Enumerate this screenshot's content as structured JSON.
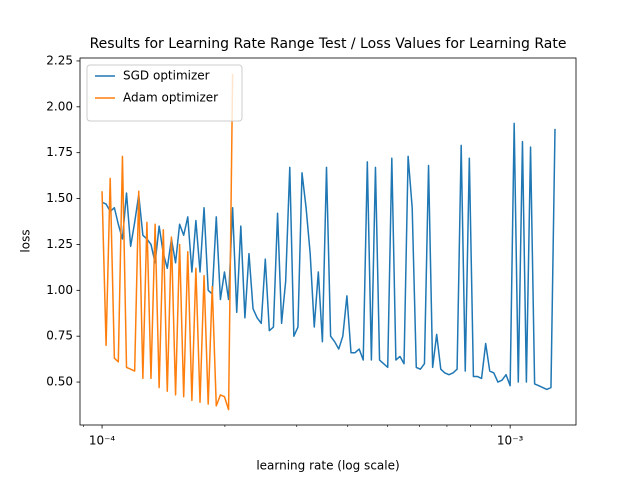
{
  "chart_data": {
    "type": "line",
    "title": "Results for Learning Rate Range Test / Loss Values for Learning Rate",
    "x_label": "learning rate (log scale)",
    "y_label": "loss",
    "xscale": "log",
    "legend": "upper left",
    "xlim": [
      8.83e-05,
      0.00145
    ],
    "xticks": [
      {
        "value": 0.0001,
        "label": "10⁻⁴"
      },
      {
        "value": 0.001,
        "label": "10⁻³"
      }
    ],
    "xminorticks": [
      9e-05,
      0.0002,
      0.0003,
      0.0004,
      0.0005,
      0.0006,
      0.0007,
      0.0008,
      0.0009
    ],
    "ylim": [
      0.266,
      2.266
    ],
    "yticks": [
      {
        "value": 0.5,
        "label": "0.50"
      },
      {
        "value": 0.75,
        "label": "0.75"
      },
      {
        "value": 1,
        "label": "1.00"
      },
      {
        "value": 1.25,
        "label": "1.25"
      },
      {
        "value": 1.5,
        "label": "1.50"
      },
      {
        "value": 1.75,
        "label": "1.75"
      },
      {
        "value": 2,
        "label": "2.00"
      },
      {
        "value": 2.25,
        "label": "2.25"
      }
    ],
    "series": [
      {
        "name": "SGD optimizer",
        "color": "#1f77b4",
        "x": [
          0.0001,
          0.0001023,
          0.0001047,
          0.0001072,
          0.0001096,
          0.0001122,
          0.0001148,
          0.0001175,
          0.0001202,
          0.000123,
          0.0001259,
          0.0001288,
          0.0001318,
          0.0001349,
          0.000138,
          0.0001413,
          0.0001445,
          0.0001479,
          0.0001514,
          0.0001549,
          0.0001585,
          0.0001622,
          0.000166,
          0.0001698,
          0.0001738,
          0.0001778,
          0.000182,
          0.0001862,
          0.0001905,
          0.000195,
          0.0001995,
          0.0002042,
          0.0002089,
          0.0002138,
          0.0002188,
          0.0002239,
          0.0002291,
          0.0002344,
          0.0002399,
          0.0002455,
          0.0002512,
          0.000257,
          0.000263,
          0.0002692,
          0.0002754,
          0.0002818,
          0.0002884,
          0.0002951,
          0.000302,
          0.000309,
          0.0003162,
          0.0003236,
          0.0003311,
          0.0003388,
          0.0003467,
          0.0003548,
          0.0003631,
          0.0003715,
          0.0003802,
          0.000389,
          0.0003981,
          0.0004074,
          0.0004169,
          0.0004266,
          0.0004365,
          0.0004467,
          0.0004571,
          0.0004677,
          0.0004786,
          0.0004898,
          0.0005012,
          0.0005129,
          0.0005248,
          0.000537,
          0.0005495,
          0.0005623,
          0.0005754,
          0.0005888,
          0.0006026,
          0.0006166,
          0.000631,
          0.0006457,
          0.0006607,
          0.0006761,
          0.0006918,
          0.0007079,
          0.0007244,
          0.0007413,
          0.0007586,
          0.0007762,
          0.0007943,
          0.0008128,
          0.0008318,
          0.0008511,
          0.000871,
          0.0008913,
          0.000912,
          0.0009333,
          0.000955,
          0.0009772,
          0.001,
          0.001023,
          0.001047,
          0.001072,
          0.001096,
          0.001122,
          0.001148,
          0.001175,
          0.001202,
          0.00123,
          0.001259,
          0.001288
        ],
        "values": [
          1.48,
          1.47,
          1.43,
          1.45,
          1.36,
          1.28,
          1.53,
          1.24,
          1.37,
          1.52,
          1.3,
          1.28,
          1.25,
          1.15,
          1.35,
          1.2,
          1.12,
          1.28,
          1.15,
          1.36,
          1.3,
          1.4,
          1.1,
          1.38,
          1.1,
          1.45,
          1.0,
          0.98,
          1.4,
          0.95,
          1.1,
          0.95,
          1.45,
          0.88,
          1.35,
          0.85,
          1.2,
          0.9,
          0.85,
          0.82,
          1.17,
          0.78,
          0.8,
          1.42,
          0.82,
          1.05,
          1.67,
          0.75,
          0.8,
          1.64,
          1.45,
          1.2,
          0.8,
          1.1,
          0.72,
          1.67,
          0.75,
          0.72,
          0.68,
          0.75,
          0.97,
          0.66,
          0.66,
          0.68,
          0.62,
          1.7,
          0.62,
          1.67,
          0.62,
          0.6,
          0.58,
          1.72,
          0.62,
          0.64,
          0.6,
          1.73,
          1.45,
          0.58,
          0.57,
          0.6,
          1.68,
          0.58,
          0.76,
          0.57,
          0.55,
          0.54,
          0.55,
          0.57,
          1.79,
          0.56,
          1.72,
          0.53,
          0.53,
          0.52,
          0.71,
          0.56,
          0.55,
          0.5,
          0.51,
          0.54,
          0.48,
          1.91,
          0.5,
          1.81,
          0.5,
          1.78,
          0.49,
          0.48,
          0.47,
          0.46,
          0.47,
          1.88
        ]
      },
      {
        "name": "Adam optimizer",
        "color": "#ff7f0e",
        "x": [
          0.0001,
          0.0001023,
          0.0001047,
          0.0001072,
          0.0001096,
          0.0001122,
          0.0001148,
          0.0001175,
          0.0001202,
          0.000123,
          0.0001259,
          0.0001288,
          0.0001318,
          0.0001349,
          0.000138,
          0.0001413,
          0.0001445,
          0.0001479,
          0.0001514,
          0.0001549,
          0.0001585,
          0.0001622,
          0.000166,
          0.0001698,
          0.0001738,
          0.0001778,
          0.000182,
          0.0001862,
          0.0001905,
          0.000195,
          0.0001995,
          0.0002042,
          0.0002089
        ],
        "values": [
          1.54,
          0.7,
          1.61,
          0.63,
          0.61,
          1.73,
          0.58,
          0.57,
          0.56,
          1.54,
          0.52,
          1.37,
          0.52,
          1.36,
          0.47,
          1.33,
          0.45,
          1.29,
          0.43,
          1.25,
          0.42,
          1.21,
          0.4,
          1.12,
          0.39,
          1.08,
          0.38,
          1.02,
          0.37,
          0.43,
          0.42,
          0.35,
          2.18
        ]
      }
    ]
  }
}
